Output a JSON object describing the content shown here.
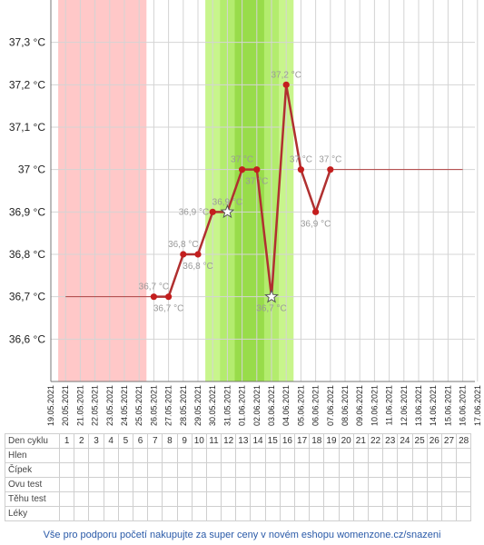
{
  "chart_data": {
    "type": "line",
    "x": [
      "19.05.2021",
      "20.05.2021",
      "21.05.2021",
      "22.05.2021",
      "23.05.2021",
      "24.05.2021",
      "25.05.2021",
      "26.05.2021",
      "27.05.2021",
      "28.05.2021",
      "29.05.2021",
      "30.05.2021",
      "31.05.2021",
      "01.06.2021",
      "02.06.2021",
      "03.06.2021",
      "04.06.2021",
      "05.06.2021",
      "06.06.2021",
      "07.06.2021",
      "08.06.2021",
      "09.06.2021",
      "10.06.2021",
      "11.06.2021",
      "12.06.2021",
      "13.06.2021",
      "14.06.2021",
      "15.06.2021",
      "16.06.2021",
      "17.06.2021"
    ],
    "ylim": [
      36.5,
      37.4
    ],
    "yticks": [
      "36,6 °C",
      "36,7 °C",
      "36,8 °C",
      "36,9 °C",
      "37 °C",
      "37,1 °C",
      "37,2 °C",
      "37,3 °C"
    ],
    "ytick_values": [
      36.6,
      36.7,
      36.8,
      36.9,
      37.0,
      37.1,
      37.2,
      37.3
    ],
    "baseline_before": {
      "from": "20.05.2021",
      "to": "26.05.2021",
      "value": 36.7
    },
    "baseline_after": {
      "from": "07.06.2021",
      "to": "16.06.2021",
      "value": 37.0
    },
    "series": [
      {
        "color": "#b03030",
        "points": [
          {
            "x": "26.05.2021",
            "y": 36.7,
            "label": "36,7 °C",
            "pos": "above",
            "marker": "dot"
          },
          {
            "x": "27.05.2021",
            "y": 36.7,
            "label": "36,7 °C",
            "pos": "below",
            "marker": "dot"
          },
          {
            "x": "28.05.2021",
            "y": 36.8,
            "label": "36,8 °C",
            "pos": "above",
            "marker": "dot"
          },
          {
            "x": "29.05.2021",
            "y": 36.8,
            "label": "36,8 °C",
            "pos": "below",
            "marker": "dot"
          },
          {
            "x": "30.05.2021",
            "y": 36.9,
            "label": "36,9 °C",
            "pos": "left",
            "marker": "dot"
          },
          {
            "x": "31.05.2021",
            "y": 36.9,
            "label": "36,9 °C",
            "pos": "above",
            "marker": "star"
          },
          {
            "x": "01.06.2021",
            "y": 37.0,
            "label": "37 °C",
            "pos": "above",
            "marker": "dot"
          },
          {
            "x": "02.06.2021",
            "y": 37.0,
            "label": "37 °C",
            "pos": "below",
            "marker": "dot"
          },
          {
            "x": "03.06.2021",
            "y": 36.7,
            "label": "36,7 °C",
            "pos": "below",
            "marker": "star"
          },
          {
            "x": "04.06.2021",
            "y": 37.2,
            "label": "37,2 °C",
            "pos": "above",
            "marker": "dot"
          },
          {
            "x": "05.06.2021",
            "y": 37.0,
            "label": "37 °C",
            "pos": "above",
            "marker": "dot"
          },
          {
            "x": "06.06.2021",
            "y": 36.9,
            "label": "36,9 °C",
            "pos": "below",
            "marker": "dot"
          },
          {
            "x": "07.06.2021",
            "y": 37.0,
            "label": "37 °C",
            "pos": "above",
            "marker": "dot"
          }
        ]
      }
    ],
    "bands": [
      {
        "from": "20.05.2021",
        "to": "25.05.2021",
        "color": "#ffc8c8"
      },
      {
        "from": "30.05.2021",
        "to": "04.06.2021",
        "color": "#c8f58c"
      },
      {
        "from": "31.05.2021",
        "to": "03.06.2021",
        "color": "#b3ec6e"
      },
      {
        "from": "01.06.2021",
        "to": "02.06.2021",
        "color": "#98dc4a"
      }
    ],
    "grid": true
  },
  "table": {
    "rows": [
      {
        "label": "Den cyklu",
        "cells": [
          "1",
          "2",
          "3",
          "4",
          "5",
          "6",
          "7",
          "8",
          "9",
          "10",
          "11",
          "12",
          "13",
          "14",
          "15",
          "16",
          "17",
          "18",
          "19",
          "20",
          "21",
          "22",
          "23",
          "24",
          "25",
          "26",
          "27",
          "28"
        ]
      },
      {
        "label": "Hlen",
        "cells": []
      },
      {
        "label": "Čípek",
        "cells": []
      },
      {
        "label": "Ovu test",
        "cells": []
      },
      {
        "label": "Těhu test",
        "cells": []
      },
      {
        "label": "Léky",
        "cells": []
      }
    ]
  },
  "footer": "Vše pro podporu početí nakupujte za super ceny v novém eshopu womenzone.cz/snazeni"
}
